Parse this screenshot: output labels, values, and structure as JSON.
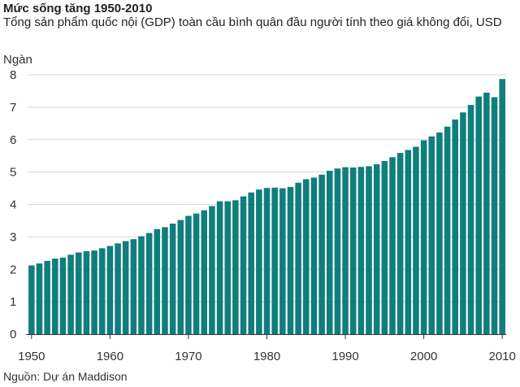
{
  "chart_data": {
    "type": "bar",
    "title": "Mức sống tăng 1950-2010",
    "subtitle": "Tổng sản phẩm quốc nội (GDP) toàn cầu bình quân đầu người tính theo giá không đổi, USD",
    "ylabel": "Ngàn",
    "source": "Nguồn: Dự án Maddison",
    "ylim": [
      0,
      8
    ],
    "yticks": [
      "0",
      "1",
      "2",
      "3",
      "4",
      "5",
      "6",
      "7",
      "8"
    ],
    "xticks": [
      "1950",
      "1960",
      "1970",
      "1980",
      "1990",
      "2000",
      "2010"
    ],
    "grid": true,
    "bar_color": "#0f7e7c",
    "x": [
      1950,
      1951,
      1952,
      1953,
      1954,
      1955,
      1956,
      1957,
      1958,
      1959,
      1960,
      1961,
      1962,
      1963,
      1964,
      1965,
      1966,
      1967,
      1968,
      1969,
      1970,
      1971,
      1972,
      1973,
      1974,
      1975,
      1976,
      1977,
      1978,
      1979,
      1980,
      1981,
      1982,
      1983,
      1984,
      1985,
      1986,
      1987,
      1988,
      1989,
      1990,
      1991,
      1992,
      1993,
      1994,
      1995,
      1996,
      1997,
      1998,
      1999,
      2000,
      2001,
      2002,
      2003,
      2004,
      2005,
      2006,
      2007,
      2008,
      2009,
      2010
    ],
    "values": [
      2.12,
      2.18,
      2.26,
      2.33,
      2.36,
      2.45,
      2.52,
      2.56,
      2.58,
      2.65,
      2.72,
      2.8,
      2.87,
      2.93,
      3.02,
      3.12,
      3.24,
      3.3,
      3.41,
      3.52,
      3.65,
      3.72,
      3.82,
      3.95,
      4.1,
      4.1,
      4.13,
      4.25,
      4.37,
      4.46,
      4.51,
      4.52,
      4.5,
      4.54,
      4.67,
      4.78,
      4.83,
      4.92,
      5.04,
      5.11,
      5.15,
      5.14,
      5.16,
      5.18,
      5.24,
      5.34,
      5.46,
      5.59,
      5.68,
      5.78,
      5.98,
      6.1,
      6.22,
      6.4,
      6.62,
      6.84,
      7.07,
      7.33,
      7.45,
      7.31,
      7.87
    ]
  }
}
